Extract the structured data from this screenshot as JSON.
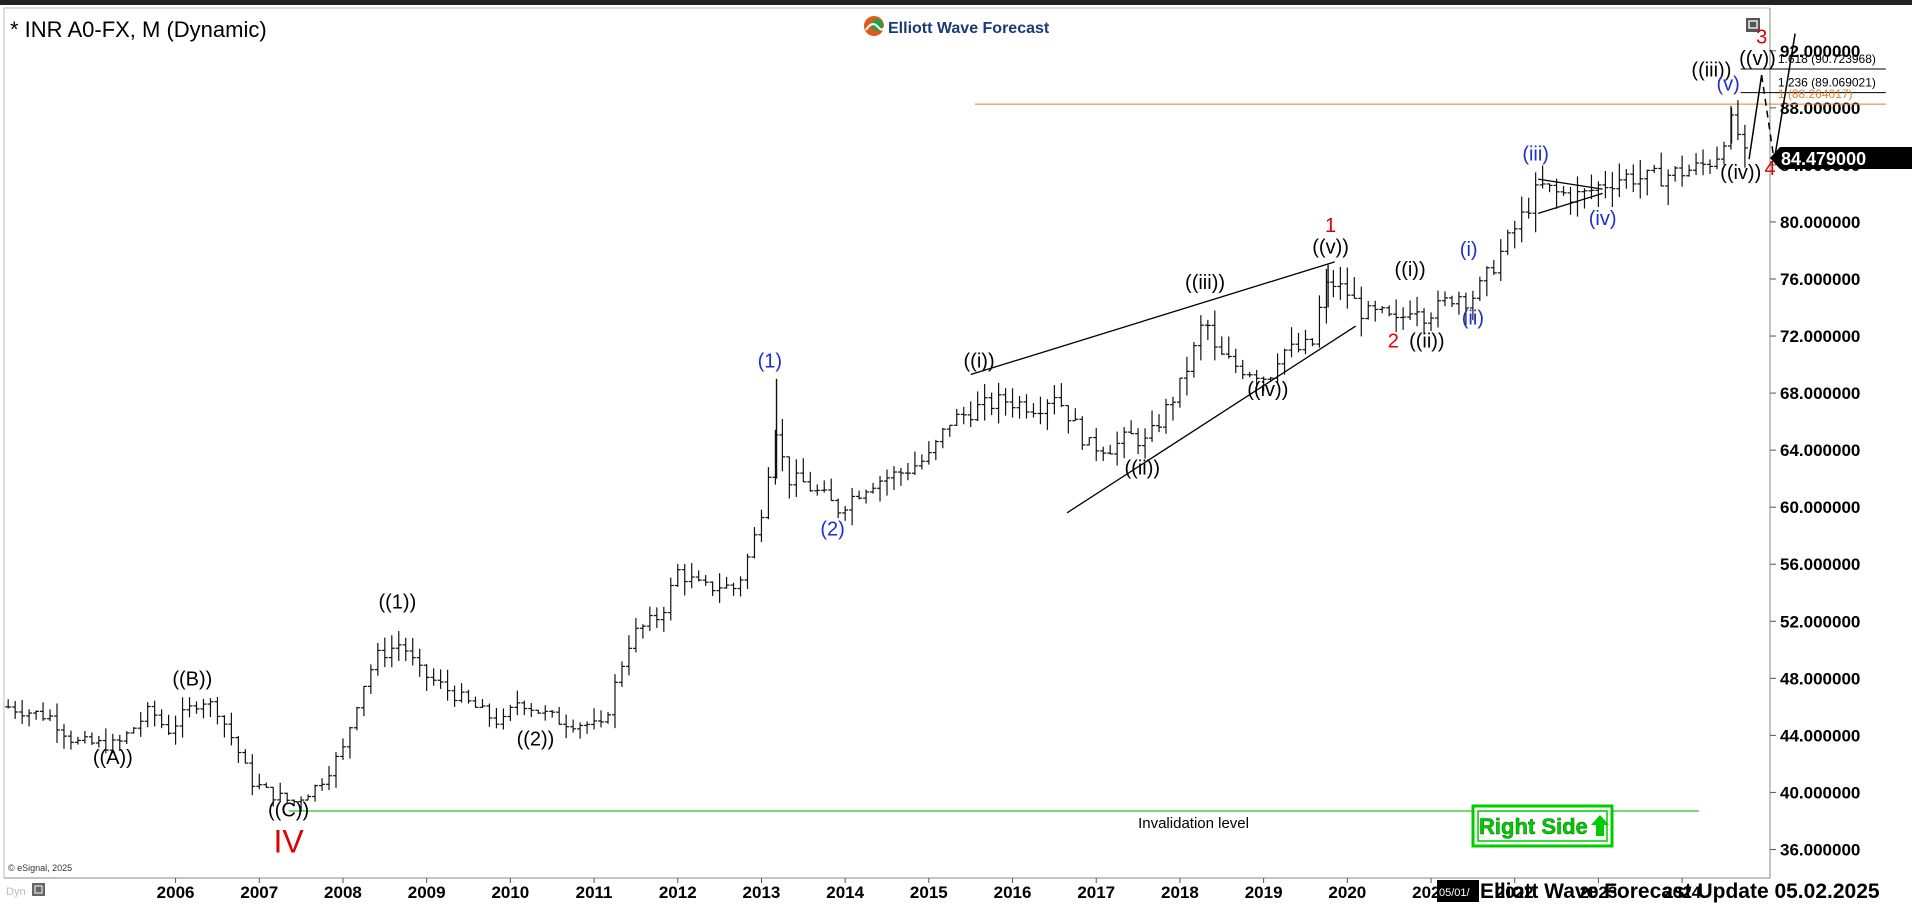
{
  "header": {
    "symbol_title": "* INR A0-FX, M (Dynamic)",
    "brand": "Elliott Wave Forecast"
  },
  "footer": {
    "update_label": "Elliott Wave Forecast Update 05.02.2025",
    "date_marker": "05/01/",
    "copyright": "© eSignal, 2025",
    "dyn_label": "Dyn"
  },
  "badge": {
    "right_side_label": "Right Side"
  },
  "price_tag": {
    "value": "84.479000"
  },
  "colors": {
    "bar": "#111111",
    "wave_red": "#e00000",
    "wave_blue": "#1a2fcc",
    "invalidation_green": "#33bb33",
    "target_orange": "#e08030",
    "right_side_green": "#00cc00",
    "price_tag_bg": "#000000"
  },
  "chart_data": {
    "type": "ohlc",
    "timeframe": "monthly",
    "ylim": [
      34,
      95
    ],
    "xlim": [
      2004.45,
      2025.55
    ],
    "y_ticks": [
      "36.000000",
      "40.000000",
      "44.000000",
      "48.000000",
      "52.000000",
      "56.000000",
      "60.000000",
      "64.000000",
      "68.000000",
      "72.000000",
      "76.000000",
      "80.000000",
      "84.000000",
      "88.000000",
      "92.000000"
    ],
    "x_ticks": [
      "2006",
      "2007",
      "2008",
      "2009",
      "2010",
      "2011",
      "2012",
      "2013",
      "2014",
      "2015",
      "2016",
      "2017",
      "2018",
      "2019",
      "2020",
      "2021",
      "2022",
      "2023",
      "2024"
    ],
    "path_points": [
      [
        2004.5,
        46.0
      ],
      [
        2005.0,
        45.3
      ],
      [
        2005.3,
        43.5
      ],
      [
        2005.8,
        43.3
      ],
      [
        2006.2,
        45.8
      ],
      [
        2006.4,
        44.3
      ],
      [
        2006.8,
        46.6
      ],
      [
        2007.0,
        45.8
      ],
      [
        2007.2,
        43.5
      ],
      [
        2007.4,
        40.8
      ],
      [
        2007.6,
        40.0
      ],
      [
        2007.9,
        39.3
      ],
      [
        2008.2,
        40.5
      ],
      [
        2008.5,
        43.0
      ],
      [
        2008.7,
        47.0
      ],
      [
        2008.9,
        49.5
      ],
      [
        2009.2,
        50.5
      ],
      [
        2009.4,
        48.5
      ],
      [
        2009.8,
        47.0
      ],
      [
        2010.2,
        45.5
      ],
      [
        2010.4,
        44.8
      ],
      [
        2010.6,
        46.5
      ],
      [
        2010.9,
        45.5
      ],
      [
        2011.1,
        45.0
      ],
      [
        2011.4,
        44.8
      ],
      [
        2011.6,
        44.5
      ],
      [
        2011.8,
        48.5
      ],
      [
        2011.95,
        51.0
      ],
      [
        2012.3,
        52.5
      ],
      [
        2012.5,
        55.5
      ],
      [
        2012.8,
        54.3
      ],
      [
        2013.0,
        54.5
      ],
      [
        2013.2,
        54.3
      ],
      [
        2013.4,
        57.5
      ],
      [
        2013.55,
        61.0
      ],
      [
        2013.65,
        66.0
      ],
      [
        2013.8,
        62.0
      ],
      [
        2014.0,
        61.7
      ],
      [
        2014.3,
        60.5
      ],
      [
        2014.4,
        59.8
      ],
      [
        2014.6,
        60.8
      ],
      [
        2014.8,
        61.7
      ],
      [
        2015.2,
        62.5
      ],
      [
        2015.5,
        63.5
      ],
      [
        2015.75,
        66.0
      ],
      [
        2016.1,
        67.0
      ],
      [
        2016.4,
        67.5
      ],
      [
        2016.8,
        67.0
      ],
      [
        2017.0,
        68.0
      ],
      [
        2017.2,
        66.2
      ],
      [
        2017.4,
        64.3
      ],
      [
        2017.7,
        64.2
      ],
      [
        2017.9,
        65.0
      ],
      [
        2018.1,
        64.5
      ],
      [
        2018.3,
        66.5
      ],
      [
        2018.5,
        68.5
      ],
      [
        2018.7,
        71.5
      ],
      [
        2018.8,
        73.5
      ],
      [
        2018.9,
        71.0
      ],
      [
        2019.0,
        70.5
      ],
      [
        2019.2,
        69.8
      ],
      [
        2019.4,
        69.5
      ],
      [
        2019.55,
        69.0
      ],
      [
        2019.7,
        71.0
      ],
      [
        2019.9,
        71.0
      ],
      [
        2020.1,
        71.5
      ],
      [
        2020.2,
        75.0
      ],
      [
        2020.3,
        75.8
      ],
      [
        2020.5,
        75.0
      ],
      [
        2020.7,
        73.5
      ],
      [
        2020.9,
        73.5
      ],
      [
        2021.1,
        72.8
      ],
      [
        2021.3,
        74.5
      ],
      [
        2021.4,
        73.5
      ],
      [
        2021.6,
        74.0
      ],
      [
        2021.8,
        75.0
      ],
      [
        2021.95,
        74.5
      ],
      [
        2022.1,
        75.5
      ],
      [
        2022.3,
        77.5
      ],
      [
        2022.5,
        79.5
      ],
      [
        2022.7,
        81.5
      ],
      [
        2022.8,
        82.5
      ],
      [
        2023.0,
        82.0
      ],
      [
        2023.3,
        81.8
      ],
      [
        2023.5,
        82.5
      ],
      [
        2023.8,
        83.2
      ],
      [
        2024.1,
        83.0
      ],
      [
        2024.4,
        83.4
      ],
      [
        2024.7,
        83.8
      ],
      [
        2024.9,
        84.5
      ],
      [
        2025.0,
        86.0
      ],
      [
        2025.05,
        87.0
      ],
      [
        2025.15,
        86.5
      ],
      [
        2025.25,
        84.5
      ],
      [
        2025.3,
        84.4
      ]
    ],
    "spikes": [
      {
        "x": 2013.68,
        "high": 69.0,
        "low": 62.0
      },
      {
        "x": 2020.27,
        "high": 77.0,
        "low": 74.0
      },
      {
        "x": 2025.09,
        "high": 88.0,
        "low": 85.5
      }
    ],
    "wave_labels": [
      {
        "text": "((A))",
        "x": 2005.75,
        "y": 42.0,
        "color": "black"
      },
      {
        "text": "((B))",
        "x": 2006.7,
        "y": 47.5,
        "color": "black"
      },
      {
        "text": "((C))",
        "x": 2007.85,
        "y": 38.3,
        "color": "black"
      },
      {
        "text": "IV",
        "x": 2007.85,
        "y": 35.8,
        "color": "red",
        "size": "large"
      },
      {
        "text": "((1))",
        "x": 2009.15,
        "y": 52.9,
        "color": "black"
      },
      {
        "text": "((2))",
        "x": 2010.8,
        "y": 43.3,
        "color": "black"
      },
      {
        "text": "(1)",
        "x": 2013.6,
        "y": 69.8,
        "color": "blue"
      },
      {
        "text": "(2)",
        "x": 2014.35,
        "y": 58.0,
        "color": "blue"
      },
      {
        "text": "((i))",
        "x": 2016.1,
        "y": 69.8,
        "color": "black"
      },
      {
        "text": "((ii))",
        "x": 2018.05,
        "y": 62.3,
        "color": "black"
      },
      {
        "text": "((iii))",
        "x": 2018.8,
        "y": 75.3,
        "color": "black"
      },
      {
        "text": "((iv))",
        "x": 2019.55,
        "y": 67.8,
        "color": "black"
      },
      {
        "text": "((v))",
        "x": 2020.3,
        "y": 77.8,
        "color": "black"
      },
      {
        "text": "1",
        "x": 2020.3,
        "y": 79.3,
        "color": "red"
      },
      {
        "text": "((i))",
        "x": 2021.25,
        "y": 76.2,
        "color": "black"
      },
      {
        "text": "2",
        "x": 2021.05,
        "y": 71.2,
        "color": "red"
      },
      {
        "text": "((ii))",
        "x": 2021.45,
        "y": 71.2,
        "color": "black"
      },
      {
        "text": "(i)",
        "x": 2021.95,
        "y": 77.6,
        "color": "blue"
      },
      {
        "text": "(ii)",
        "x": 2022.0,
        "y": 72.8,
        "color": "blue"
      },
      {
        "text": "(iii)",
        "x": 2022.75,
        "y": 84.3,
        "color": "blue"
      },
      {
        "text": "(iv)",
        "x": 2023.55,
        "y": 79.8,
        "color": "blue"
      },
      {
        "text": "((iii))",
        "x": 2024.85,
        "y": 90.2,
        "color": "black"
      },
      {
        "text": "(v)",
        "x": 2025.05,
        "y": 89.2,
        "color": "blue"
      },
      {
        "text": "((iv))",
        "x": 2025.2,
        "y": 83.0,
        "color": "black"
      },
      {
        "text": "((v))",
        "x": 2025.4,
        "y": 91.0,
        "color": "black"
      },
      {
        "text": "3",
        "x": 2025.45,
        "y": 92.5,
        "color": "red"
      },
      {
        "text": "4",
        "x": 2025.55,
        "y": 83.3,
        "color": "red"
      }
    ],
    "channel_lines": [
      {
        "from": [
          2016.0,
          69.3
        ],
        "to": [
          2020.35,
          77.2
        ]
      },
      {
        "from": [
          2017.15,
          59.6
        ],
        "to": [
          2020.6,
          72.7
        ]
      },
      {
        "from": [
          2022.78,
          83.0
        ],
        "to": [
          2023.55,
          82.3
        ]
      },
      {
        "from": [
          2022.78,
          80.6
        ],
        "to": [
          2023.55,
          82.0
        ]
      }
    ],
    "projection": [
      {
        "from": [
          2025.3,
          84.4
        ],
        "to": [
          2025.45,
          90.3
        ],
        "style": "solid"
      },
      {
        "from": [
          2025.45,
          90.3
        ],
        "to": [
          2025.6,
          84.3
        ],
        "style": "dashed"
      },
      {
        "from": [
          2025.6,
          84.3
        ],
        "to": [
          2025.85,
          93.2
        ],
        "style": "solid"
      }
    ],
    "fib_levels": [
      {
        "label": "1.618 (90.723968)",
        "value": 90.723968,
        "color": "black",
        "x_start": 2025.2
      },
      {
        "label": "1.236 (89.069021)",
        "value": 89.069021,
        "color": "black",
        "x_start": 2025.2
      },
      {
        "label": "1 (88.264017)",
        "value": 88.264017,
        "color": "orange",
        "x_start": 2016.05
      }
    ],
    "invalidation": {
      "label": "Invalidation level",
      "value": 38.7,
      "color": "green"
    },
    "last_price": 84.479
  }
}
